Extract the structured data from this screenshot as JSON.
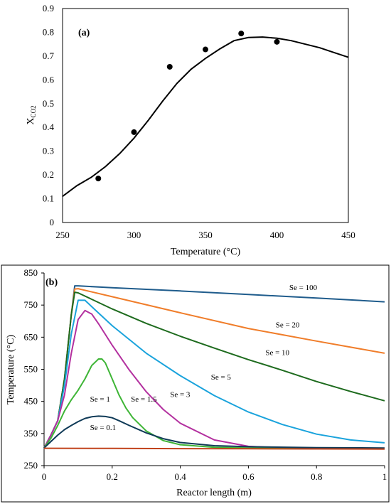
{
  "chart_data": [
    {
      "type": "scatter",
      "panel_label": "(a)",
      "xlabel": "Temperature (°C)",
      "ylabel_main": "X",
      "ylabel_sub": "CO2",
      "xlim": [
        250,
        450
      ],
      "ylim": [
        0,
        0.9
      ],
      "xticks": [
        "250",
        "300",
        "350",
        "400",
        "450"
      ],
      "yticks": [
        "0",
        "0.1",
        "0.2",
        "0.3",
        "0.4",
        "0.5",
        "0.6",
        "0.7",
        "0.8",
        "0.9"
      ],
      "grid": false,
      "series": [
        {
          "kind": "points",
          "x": [
            275,
            300,
            325,
            350,
            375,
            400
          ],
          "y": [
            0.185,
            0.38,
            0.655,
            0.728,
            0.795,
            0.76
          ]
        },
        {
          "kind": "line",
          "x": [
            250,
            260,
            270,
            280,
            290,
            300,
            310,
            320,
            330,
            340,
            350,
            360,
            370,
            380,
            390,
            400,
            410,
            420,
            430,
            440,
            450
          ],
          "y": [
            0.11,
            0.155,
            0.19,
            0.235,
            0.29,
            0.355,
            0.43,
            0.51,
            0.585,
            0.645,
            0.69,
            0.73,
            0.765,
            0.778,
            0.78,
            0.775,
            0.765,
            0.75,
            0.735,
            0.715,
            0.695
          ]
        }
      ]
    },
    {
      "type": "line",
      "panel_label": "(b)",
      "xlabel": "Reactor length (m)",
      "ylabel": "Temperature (°C)",
      "xlim": [
        0,
        1
      ],
      "ylim": [
        250,
        850
      ],
      "xticks": [
        "0",
        "0.2",
        "0.4",
        "0.6",
        "0.8",
        "1"
      ],
      "yticks": [
        "250",
        "350",
        "450",
        "550",
        "650",
        "750",
        "850"
      ],
      "grid": false,
      "series": [
        {
          "name": "Se = 100",
          "color": "#1f5c8c",
          "x": [
            0,
            0.02,
            0.04,
            0.06,
            0.08,
            0.09,
            0.1,
            0.2,
            0.4,
            0.6,
            0.8,
            1.0
          ],
          "y": [
            305,
            345,
            390,
            520,
            720,
            810,
            810,
            804,
            794,
            783,
            772,
            760
          ]
        },
        {
          "name": "Se = 20",
          "color": "#f07d2a",
          "x": [
            0,
            0.02,
            0.04,
            0.06,
            0.08,
            0.09,
            0.1,
            0.2,
            0.4,
            0.6,
            0.8,
            1.0
          ],
          "y": [
            305,
            345,
            390,
            520,
            720,
            800,
            801,
            776,
            726,
            677,
            638,
            600
          ]
        },
        {
          "name": "Se = 10",
          "color": "#1e6b1e",
          "x": [
            0,
            0.02,
            0.04,
            0.06,
            0.08,
            0.09,
            0.1,
            0.2,
            0.3,
            0.4,
            0.5,
            0.6,
            0.7,
            0.8,
            0.9,
            1.0
          ],
          "y": [
            305,
            345,
            390,
            520,
            720,
            790,
            788,
            738,
            693,
            653,
            616,
            580,
            547,
            512,
            481,
            452
          ]
        },
        {
          "name": "Se = 5",
          "color": "#1aa3dc",
          "x": [
            0,
            0.02,
            0.04,
            0.06,
            0.08,
            0.1,
            0.12,
            0.15,
            0.2,
            0.3,
            0.4,
            0.5,
            0.6,
            0.7,
            0.8,
            0.9,
            1.0
          ],
          "y": [
            305,
            345,
            390,
            500,
            660,
            765,
            765,
            735,
            686,
            600,
            530,
            468,
            417,
            378,
            348,
            330,
            321
          ]
        },
        {
          "name": "Se = 3",
          "color": "#b3309f",
          "x": [
            0,
            0.02,
            0.04,
            0.06,
            0.08,
            0.1,
            0.12,
            0.14,
            0.16,
            0.2,
            0.25,
            0.3,
            0.35,
            0.4,
            0.5,
            0.6,
            0.7,
            0.8,
            1.0
          ],
          "y": [
            305,
            345,
            390,
            470,
            600,
            705,
            733,
            722,
            692,
            625,
            548,
            480,
            425,
            382,
            330,
            310,
            305,
            303,
            302
          ]
        },
        {
          "name": "Se = 1.5",
          "color": "#3eb536",
          "x": [
            0,
            0.02,
            0.04,
            0.06,
            0.08,
            0.1,
            0.12,
            0.14,
            0.16,
            0.17,
            0.18,
            0.2,
            0.22,
            0.24,
            0.26,
            0.3,
            0.35,
            0.4,
            0.5,
            0.6,
            0.8,
            1.0
          ],
          "y": [
            305,
            335,
            375,
            420,
            455,
            485,
            520,
            562,
            582,
            582,
            570,
            520,
            470,
            430,
            400,
            358,
            328,
            315,
            307,
            305,
            304,
            303
          ]
        },
        {
          "name": "Se = 0.1",
          "color": "#0f3a57",
          "x": [
            0,
            0.02,
            0.04,
            0.06,
            0.08,
            0.1,
            0.12,
            0.14,
            0.16,
            0.18,
            0.2,
            0.22,
            0.25,
            0.3,
            0.35,
            0.4,
            0.5,
            0.6,
            0.8,
            1.0
          ],
          "y": [
            305,
            325,
            345,
            362,
            375,
            387,
            397,
            402,
            404,
            403,
            399,
            390,
            375,
            352,
            334,
            322,
            312,
            309,
            306,
            305
          ]
        },
        {
          "name": "Se = 1",
          "color": "#c1421b",
          "x": [
            0,
            0.2,
            0.4,
            0.6,
            0.8,
            1.0
          ],
          "y": [
            304,
            303.5,
            303,
            302.5,
            302,
            301.5
          ]
        }
      ],
      "labels": [
        {
          "text": "Se = 100",
          "x": 0.72,
          "y": 806
        },
        {
          "text": "Se = 20",
          "x": 0.68,
          "y": 690
        },
        {
          "text": "Se = 10",
          "x": 0.65,
          "y": 603
        },
        {
          "text": "Se = 5",
          "x": 0.49,
          "y": 527
        },
        {
          "text": "Se = 3",
          "x": 0.37,
          "y": 473
        },
        {
          "text": "Se = 1.5",
          "x": 0.255,
          "y": 458
        },
        {
          "text": "Se = 1",
          "x": 0.135,
          "y": 458
        },
        {
          "text": "Se = 0.1",
          "x": 0.135,
          "y": 370
        }
      ]
    }
  ]
}
